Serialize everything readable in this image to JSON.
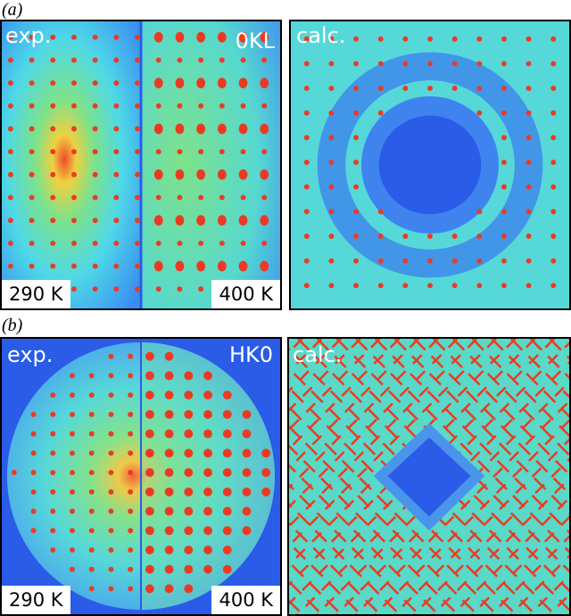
{
  "panel_a": {
    "letter": "(a)",
    "exp_label": "exp.",
    "plane_label": "0KL",
    "calc_label": "calc.",
    "temp_left": "290 K",
    "temp_right": "400 K"
  },
  "panel_b": {
    "letter": "(b)",
    "exp_label": "exp.",
    "plane_label": "HK0",
    "calc_label": "calc.",
    "temp_left": "290 K",
    "temp_right": "400 K"
  },
  "colors": {
    "background_blue": "#2a5ce8",
    "mid_cyan": "#4ed8e8",
    "green": "#7ee28a",
    "peak_red": "#ec3a22",
    "label_white": "#ffffff"
  }
}
